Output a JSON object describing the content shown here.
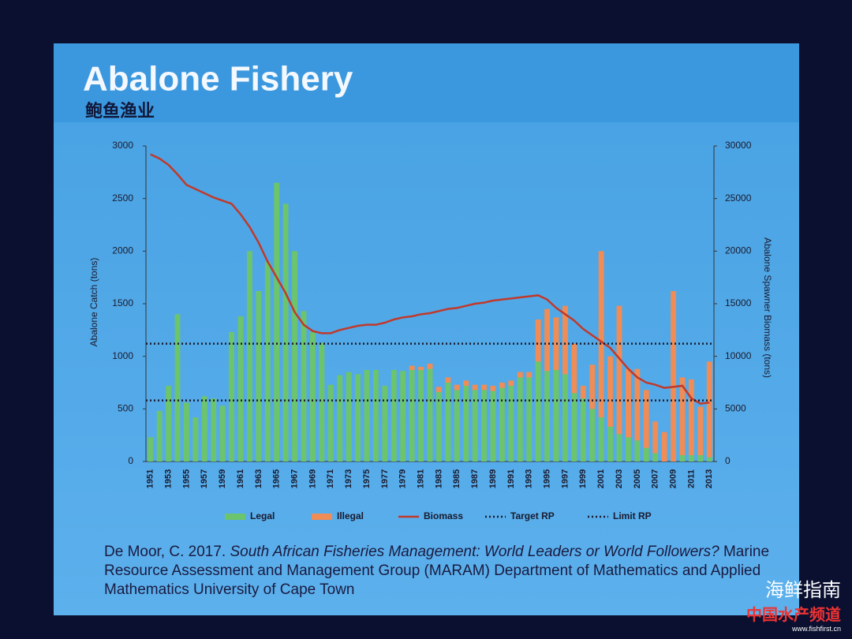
{
  "chart_data": {
    "type": "bar",
    "title": "Abalone Fishery",
    "subtitle": "鲍鱼渔业",
    "y_label": "Abalone Catch (tons)",
    "y2_label": "Abalone Spawner Biomass (tons)",
    "categories": [
      "1951",
      null,
      "1953",
      null,
      "1955",
      null,
      "1957",
      null,
      "1959",
      null,
      "1961",
      null,
      "1963",
      null,
      "1965",
      null,
      "1967",
      null,
      "1969",
      null,
      "1971",
      null,
      "1973",
      null,
      "1975",
      null,
      "1977",
      null,
      "1979",
      null,
      "1981",
      null,
      "1983",
      null,
      "1985",
      null,
      "1987",
      null,
      "1989",
      null,
      "1991",
      null,
      "1993",
      null,
      "1995",
      null,
      "1997",
      null,
      "1999",
      null,
      "2001",
      null,
      "2003",
      null,
      "2005",
      null,
      "2007",
      null,
      "2009",
      null,
      "2011",
      null,
      "2013"
    ],
    "series": [
      {
        "name": "Legal",
        "type": "bar",
        "stacked": true,
        "color": "#6cc46c",
        "values": [
          230,
          480,
          720,
          1400,
          560,
          420,
          620,
          600,
          530,
          1230,
          1380,
          2000,
          1620,
          1900,
          2650,
          2450,
          2000,
          1430,
          1230,
          1130,
          730,
          820,
          850,
          830,
          870,
          870,
          720,
          870,
          860,
          870,
          870,
          880,
          660,
          750,
          680,
          720,
          680,
          680,
          670,
          700,
          720,
          800,
          800,
          950,
          860,
          870,
          830,
          650,
          600,
          500,
          420,
          330,
          260,
          230,
          200,
          130,
          80,
          0,
          0,
          60,
          60,
          60,
          40
        ]
      },
      {
        "name": "Illegal",
        "type": "bar",
        "stacked": true,
        "color": "#f08c55",
        "values": [
          0,
          0,
          0,
          0,
          0,
          0,
          0,
          0,
          0,
          0,
          0,
          0,
          0,
          0,
          0,
          0,
          0,
          0,
          0,
          0,
          0,
          0,
          0,
          0,
          0,
          0,
          0,
          0,
          0,
          40,
          30,
          50,
          50,
          50,
          50,
          50,
          50,
          50,
          50,
          50,
          50,
          50,
          50,
          400,
          590,
          500,
          650,
          470,
          120,
          420,
          1580,
          670,
          1220,
          650,
          680,
          550,
          300,
          280,
          1620,
          740,
          720,
          460,
          910
        ]
      },
      {
        "name": "Biomass",
        "type": "line",
        "axis": "y2",
        "color": "#c0392b",
        "values": [
          29200,
          28800,
          28200,
          27300,
          26300,
          25900,
          25500,
          25100,
          24800,
          24500,
          23500,
          22300,
          20800,
          19000,
          17500,
          16000,
          14200,
          13000,
          12400,
          12200,
          12200,
          12500,
          12700,
          12900,
          13000,
          13000,
          13200,
          13500,
          13700,
          13800,
          14000,
          14100,
          14300,
          14500,
          14600,
          14800,
          15000,
          15100,
          15300,
          15400,
          15500,
          15600,
          15700,
          15800,
          15400,
          14600,
          14000,
          13400,
          12600,
          12000,
          11400,
          10800,
          9800,
          8800,
          8000,
          7500,
          7300,
          7000,
          7100,
          7200,
          6000,
          5500,
          5600
        ]
      }
    ],
    "reference_lines": [
      {
        "name": "Target RP",
        "axis": "y2",
        "value": 11200,
        "color": "#1a1a2e"
      },
      {
        "name": "Limit RP",
        "axis": "y2",
        "value": 5800,
        "color": "#1a1a2e"
      }
    ],
    "ylim": [
      0,
      3000
    ],
    "yticks": [
      0,
      500,
      1000,
      1500,
      2000,
      2500,
      3000
    ],
    "y2lim": [
      0,
      30000
    ],
    "y2ticks": [
      0,
      5000,
      10000,
      15000,
      20000,
      25000,
      30000
    ],
    "legend": "bottom"
  },
  "citation": {
    "author": "De Moor, C. 2017.",
    "title": "South African Fisheries Management: World Leaders or World Followers?",
    "rest": "Marine Resource Assessment and Management Group (MARAM) Department of Mathematics and Applied Mathematics University of Cape Town"
  },
  "watermark": {
    "name": "海鲜指南",
    "channel": "中国水产频道",
    "site": "www.fishfirst.cn"
  }
}
